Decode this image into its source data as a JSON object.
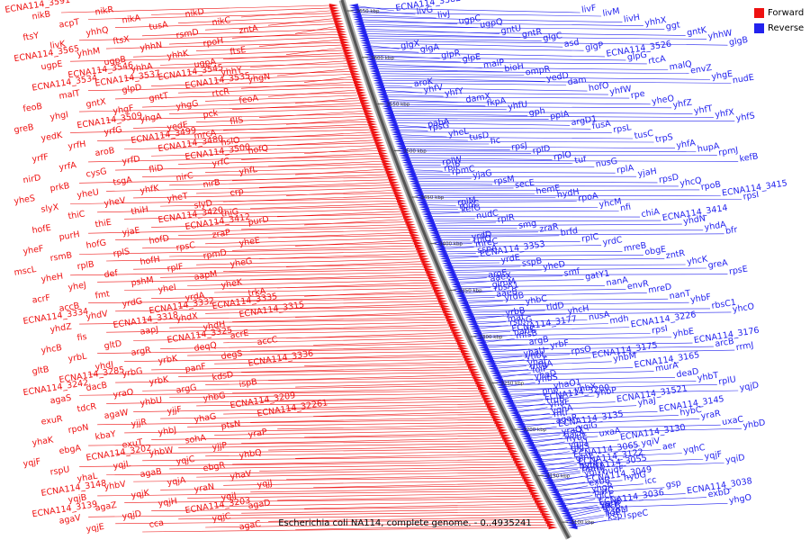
{
  "caption": "Escherichia coli NA114, complete genome. - 0..4935241",
  "legend": [
    {
      "label": "Forward",
      "color": "#ee1111"
    },
    {
      "label": "Reverse",
      "color": "#2222ee"
    }
  ],
  "colors": {
    "forward": "#ee1111",
    "reverse": "#2222ee",
    "backbone": "#666666"
  },
  "ticks": [
    "3650 kbp",
    "3600 kbp",
    "3550 kbp",
    "3500 kbp",
    "3450 kbp",
    "3400 kbp",
    "3350 kbp",
    "3300 kbp",
    "3250 kbp",
    "3200 kbp",
    "3150 kbp",
    "3100 kbp"
  ],
  "forward_labels": [
    "ECNA114_3591",
    "nikR",
    "nikD",
    "nikB",
    "nikA",
    "nikC",
    "acpT",
    "tusA",
    "zntA",
    "yhhQ",
    "rsmD",
    "ftsY",
    "ftsX",
    "rpoH",
    "livK",
    "yhhN",
    "ftsE",
    "yhhM",
    "yhhK",
    "ECNA114_3565",
    "ugpB",
    "ugpA",
    "ugpE",
    "yhhA",
    "yhhY",
    "ECNA114_3546",
    "ECNA114_3545",
    "yhgN",
    "ECNA114_3537",
    "ECNA114_3535",
    "ECNA114_3534",
    "glpD",
    "rtcR",
    "malT",
    "gntT",
    "feoA",
    "gntX",
    "yhgG",
    "feoB",
    "yhgF",
    "pck",
    "yhgI",
    "yhgA",
    "flIS",
    "ECNA114_3509",
    "yedE",
    "greB",
    "yrfG",
    "mrcA",
    "yedK",
    "ECNA114_3499",
    "hslO",
    "yrfH",
    "ECNA114_3480",
    "hofQ",
    "aroB",
    "ECNA114_3500",
    "yrfF",
    "yrfD",
    "yrfC",
    "yrfA",
    "fliD",
    "yhfL",
    "cysG",
    "nirC",
    "nirD",
    "tsgA",
    "nirB",
    "prkB",
    "yhfK",
    "crp",
    "yheU",
    "yheT",
    "yheS",
    "yheV",
    "slyD",
    "slyX",
    "thiH",
    "thiG",
    "thiC",
    "ECNA114_3420",
    "purD",
    "thiE",
    "ECNA114_3412",
    "hofE",
    "yjaE",
    "zraP",
    "purH",
    "hofD",
    "yheE",
    "hofG",
    "rpsC",
    "yheF",
    "rplS",
    "rpmD",
    "rsmB",
    "hofH",
    "yheG",
    "rplB",
    "rplF",
    "mscL",
    "def",
    "aapM",
    "yheH",
    "pshM",
    "yheK",
    "yheJ",
    "yheI",
    "trkA",
    "fmt",
    "yrdA",
    "acrF",
    "yrdG",
    "ECNA114_3335",
    "accB",
    "ECNA114_3332",
    "ECNA114_3315",
    "yhdV",
    "yhdX",
    "ECNA114_3334",
    "ECNA114_3318",
    "yhdH",
    "yhdZ",
    "aapJ",
    "acrE",
    "fis",
    "ECNA114_3325",
    "accC",
    "gltD",
    "deqQ",
    "yhcB",
    "argR",
    "degS",
    "yrbL",
    "yrbK",
    "ECNA114_3336",
    "yhdJ",
    "panF",
    "gltB",
    "yrbG",
    "kdsD",
    "ECNA114_3285",
    "yrbK",
    "ispB",
    "dacB",
    "argG",
    "ECNA114_3242",
    "yraO",
    "yhbG",
    "agaS",
    "yhbU",
    "ECNA114_3209",
    "tdcR",
    "yjjF",
    "ECNA114_32261",
    "agaW",
    "yhaG",
    "exuR",
    "yjjR",
    "ptsN",
    "rpoN",
    "yhbJ",
    "yraP",
    "kbaY",
    "sohA",
    "yhaK",
    "exuT",
    "yjjP",
    "ebgA",
    "yhbW",
    "yhbQ",
    "ECNA114_3202",
    "yqjC",
    "yqjF",
    "yqjL",
    "ebgR",
    "rspU",
    "agaB",
    "yhaV",
    "yhaL",
    "yqjA",
    "yqjJ",
    "yhbV",
    "yraN",
    "ECNA114_3148",
    "yqjK",
    "yqjJ",
    "yqjB",
    "yqjH",
    "agaD",
    "agaZ",
    "ECNA114_3203",
    "ECNA114_3139",
    "yqjD",
    "yqjC",
    "agaV",
    "cca",
    "agaC",
    "yqjE"
  ],
  "reverse_labels": [
    "ECNA114_3582",
    "livF",
    "livG",
    "livM",
    "livJ",
    "livH",
    "ugpC",
    "yhhX",
    "ugpQ",
    "ggt",
    "gntU",
    "gntK",
    "gntR",
    "yhhW",
    "glgC",
    "glgB",
    "asd",
    "glgX",
    "glgP",
    "glgA",
    "ECNA114_3526",
    "glpR",
    "glpG",
    "glpE",
    "rtcA",
    "malP",
    "malQ",
    "bioH",
    "envZ",
    "ompR",
    "yhgE",
    "yedD",
    "nudE",
    "dam",
    "aroK",
    "hofO",
    "yhfV",
    "yhfW",
    "yhfY",
    "rpe",
    "damX",
    "yheO",
    "fkpA",
    "yhfZ",
    "yhfU",
    "yhfT",
    "gph",
    "yhfX",
    "ppiA",
    "yhfS",
    "argD1",
    "pabA",
    "fusA",
    "rpsG",
    "rpsL",
    "yheL",
    "tusC",
    "tusD",
    "trpS",
    "fic",
    "yhfA",
    "rpsJ",
    "hupA",
    "rplD",
    "rpmJ",
    "rplO",
    "kefB",
    "tuf",
    "rplW",
    "nusG",
    "rplP",
    "rplA",
    "rpmC",
    "yjaH",
    "yjaG",
    "rpsD",
    "rpsM",
    "yhcQ",
    "secE",
    "rpoB",
    "hemE",
    "ECNA114_3415",
    "hydH",
    "rpsI",
    "rpoA",
    "rplM",
    "yhcM",
    "rpoC",
    "nfi",
    "kefG",
    "chiA",
    "nudC",
    "ECNA114_3414",
    "rplR",
    "yhdN",
    "smg",
    "yhdA",
    "zraR",
    "bfr",
    "brfd",
    "yrdD",
    "rplC",
    "rplQ",
    "yrdC",
    "mreC",
    "mreB",
    "sspA",
    "obgE",
    "ECNA114_3353",
    "zntR",
    "yrdE",
    "yhcK",
    "sspB",
    "greA",
    "yheD",
    "rpsE",
    "smf",
    "aroE",
    "gatY1",
    "aaeX",
    "nanA",
    "glmM",
    "envR",
    "rbsA1",
    "mreD",
    "aaeB",
    "nanT",
    "yrdB",
    "yhbF",
    "yhbC",
    "rbsC1",
    "tldD",
    "yhcO",
    "yhcH",
    "yrbB",
    "nusA",
    "maf",
    "mdh",
    "rsmG",
    "ECNA114_3226",
    "ECNA114_3177",
    "rpsI",
    "nanK",
    "yhbE",
    "mfsB",
    "ECNA114_3176",
    "argB",
    "arcB",
    "yrbF",
    "rrmJ",
    "rpsO",
    "yhaU",
    "ECNA114_3175",
    "yhbL",
    "yhbM",
    "yhaF",
    "ECNA114_3165",
    "mtgA",
    "murA",
    "folP",
    "deaD",
    "yhaD",
    "yhbT",
    "yhbS",
    "rplU",
    "yhaO1",
    "yqjD",
    "yhbX",
    "pnp",
    "yhbP",
    "ECNA114_3200",
    "ECNA114_31521",
    "truB",
    "yhaJ",
    "yhaE",
    "ECNA114_3145",
    "yqhA",
    "hybC",
    "mtr",
    "yraR",
    "agaR",
    "uxaC",
    "ECNA114_3135",
    "yhbD",
    "yqiG",
    "yraQ",
    "uxaA",
    "bacA",
    "ECNA114_3130",
    "hybE",
    "yqiV",
    "yqjI1",
    "aer",
    "glgS",
    "yqhC",
    "ECNA114_3065",
    "yqjF",
    "glnE",
    "yqiD",
    "ECNA114_3122",
    "hybF",
    "ECNA114_3055",
    "ribH1",
    "nudF",
    "yqiW",
    "hybG",
    "ECNA114_3049",
    "icc",
    "exbB",
    "gsp",
    "yhgR",
    "ECNA114_3038",
    "parC",
    "exbD",
    "glcE",
    "yhgO",
    "ECNA114_3036",
    "yghS",
    "glcF",
    "glcB",
    "kspM",
    "lldP",
    "speC",
    "kspT"
  ]
}
